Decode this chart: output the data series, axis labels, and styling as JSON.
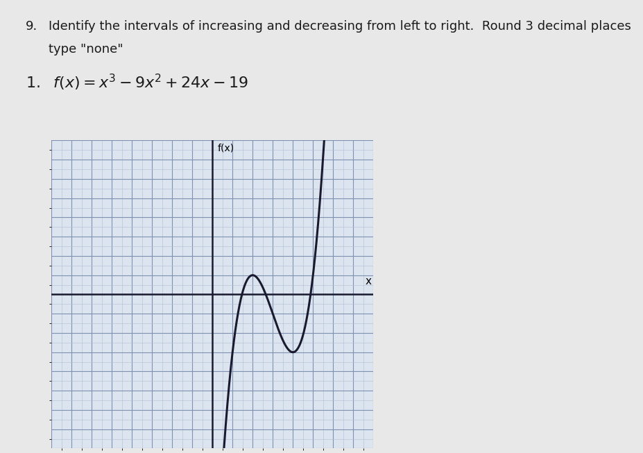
{
  "title_num": "9.",
  "title_text": "Identify the intervals of increasing and decreasing from left to right.  Round 3 decimal places",
  "subtitle_text": "type \"none\"",
  "xlabel": "x",
  "ylabel": "f(x)",
  "xlim": [
    -8,
    8
  ],
  "ylim": [
    -8,
    8
  ],
  "x_axis_pos": 0,
  "y_axis_pos": 0,
  "grid_color": "#8090b0",
  "grid_minor_color": "#b0bdd0",
  "axis_color": "#1a1a2e",
  "curve_color": "#1a1a2e",
  "graph_bg_color": "#dce4f0",
  "curve_lw": 2.2,
  "fig_bg_color": "#e8e8e8",
  "text_color": "#1a1a1a"
}
